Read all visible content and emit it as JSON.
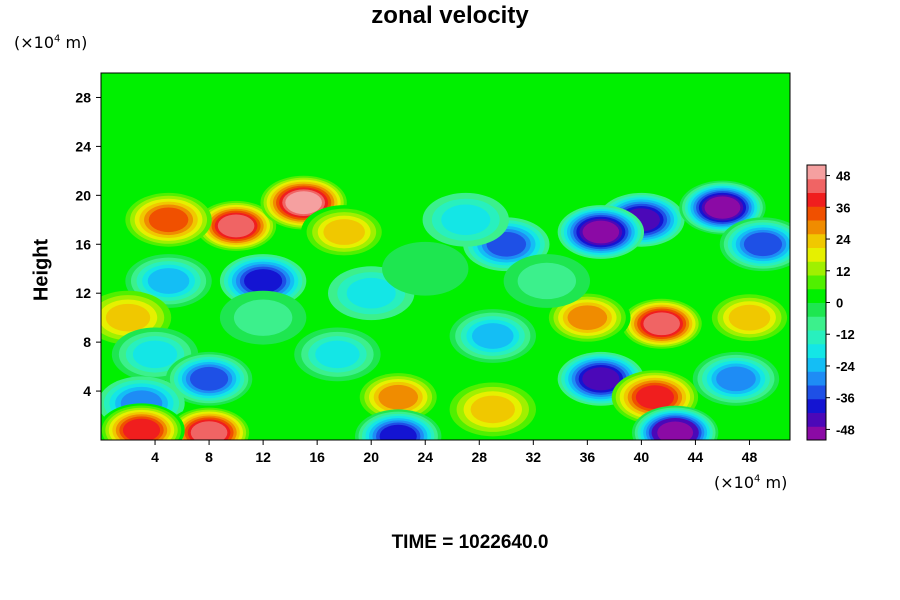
{
  "chart_data": {
    "type": "heatmap",
    "title": "zonal velocity",
    "xlabel": "",
    "ylabel": "Height",
    "x_unit": {
      "prefix": "(×10",
      "exp": "4",
      "suffix": " m)"
    },
    "y_unit": {
      "prefix": "(×10",
      "exp": "4",
      "suffix": " m)"
    },
    "xlim": [
      0,
      51
    ],
    "ylim": [
      0,
      30
    ],
    "x_ticks": [
      "4",
      "8",
      "12",
      "16",
      "20",
      "24",
      "28",
      "32",
      "36",
      "40",
      "44",
      "48"
    ],
    "y_ticks": [
      "4",
      "8",
      "12",
      "16",
      "20",
      "24",
      "28"
    ],
    "colorbar": {
      "range": [
        -52,
        52
      ],
      "tick_labels": [
        "48",
        "36",
        "24",
        "12",
        "0",
        "-12",
        "-24",
        "-36",
        "-48"
      ],
      "colors": [
        "#8b0aa5",
        "#4b08b8",
        "#1414d2",
        "#1e50e6",
        "#1e8cf5",
        "#14bef5",
        "#14e6e6",
        "#28f0be",
        "#3cf08c",
        "#1ee650",
        "#00f000",
        "#50f000",
        "#a0f000",
        "#e6f000",
        "#f0c800",
        "#f08c00",
        "#f05000",
        "#f01e1e",
        "#f06464",
        "#f5a0a0"
      ],
      "background_value": 0,
      "features": [
        {
          "x": 10,
          "y": 17.5,
          "value": 46
        },
        {
          "x": 15,
          "y": 19.4,
          "value": 48
        },
        {
          "x": 5,
          "y": 18,
          "value": 32
        },
        {
          "x": 18,
          "y": 17,
          "value": 24
        },
        {
          "x": 12,
          "y": 13,
          "value": -38
        },
        {
          "x": 5,
          "y": 13,
          "value": -24
        },
        {
          "x": 20,
          "y": 12,
          "value": -16
        },
        {
          "x": 2,
          "y": 10,
          "value": 22
        },
        {
          "x": 12,
          "y": 10,
          "value": -8
        },
        {
          "x": 4,
          "y": 7,
          "value": -20
        },
        {
          "x": 8,
          "y": 5,
          "value": -34
        },
        {
          "x": 3,
          "y": 3,
          "value": -28
        },
        {
          "x": 17.5,
          "y": 7,
          "value": -20
        },
        {
          "x": 22,
          "y": 3.5,
          "value": 30
        },
        {
          "x": 29,
          "y": 2.5,
          "value": 22
        },
        {
          "x": 29,
          "y": 8.5,
          "value": -26
        },
        {
          "x": 41.5,
          "y": 9.5,
          "value": 46
        },
        {
          "x": 36,
          "y": 10,
          "value": 30
        },
        {
          "x": 48,
          "y": 10,
          "value": 24
        },
        {
          "x": 37,
          "y": 5,
          "value": -44
        },
        {
          "x": 41,
          "y": 3.5,
          "value": 38
        },
        {
          "x": 47,
          "y": 5,
          "value": -30
        },
        {
          "x": 42.5,
          "y": 0.6,
          "value": -52
        },
        {
          "x": 22,
          "y": 0.3,
          "value": -40
        },
        {
          "x": 8,
          "y": 0.6,
          "value": 46
        },
        {
          "x": 3,
          "y": 0.8,
          "value": 40
        },
        {
          "x": 40,
          "y": 18,
          "value": -42
        },
        {
          "x": 46,
          "y": 19,
          "value": -50
        },
        {
          "x": 37,
          "y": 17,
          "value": -48
        },
        {
          "x": 30,
          "y": 16,
          "value": -32
        },
        {
          "x": 27,
          "y": 18,
          "value": -18
        },
        {
          "x": 33,
          "y": 13,
          "value": -10
        },
        {
          "x": 24,
          "y": 14,
          "value": -4
        },
        {
          "x": 49,
          "y": 16,
          "value": -34
        }
      ]
    }
  },
  "footer": {
    "time": "TIME = 1022640.0"
  }
}
